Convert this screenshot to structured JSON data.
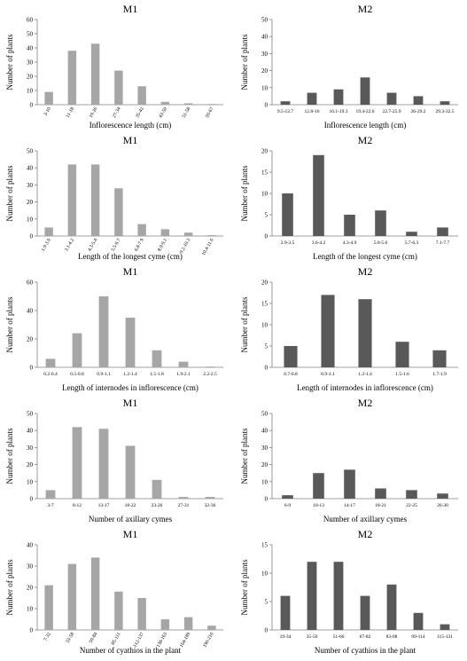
{
  "colors": {
    "M1": "#a6a6a6",
    "M2": "#595959",
    "axis": "#808080"
  },
  "chart_data": [
    {
      "type": "bar",
      "title": "M1",
      "xlabel": "Inflorescence length (cm)",
      "ylabel": "Number of plants",
      "ylim": [
        0,
        60
      ],
      "yticks": [
        "0",
        "10",
        "20",
        "30",
        "40",
        "50",
        "60"
      ],
      "categories": [
        "3-10",
        "11-18",
        "19-26",
        "27-34",
        "35-42",
        "43-50",
        "51-58",
        "59-67"
      ],
      "values": [
        9,
        38,
        43,
        24,
        13,
        2,
        1,
        0.5
      ]
    },
    {
      "type": "bar",
      "title": "M2",
      "xlabel": "Inflorescence length (cm)",
      "ylabel": "Number of plants",
      "ylim": [
        0,
        50
      ],
      "yticks": [
        "0",
        "10",
        "20",
        "30",
        "40",
        "50"
      ],
      "categories": [
        "9.5-12.7",
        "12.8-16",
        "16.1-19.3",
        "19.4-22.6",
        "22.7-25.9",
        "26-29.2",
        "29.3-32.5"
      ],
      "values": [
        2,
        7,
        9,
        16,
        7,
        5,
        2
      ]
    },
    {
      "type": "bar",
      "title": "M1",
      "xlabel": "Length of the longest cyme (cm)",
      "ylabel": "Number of plants",
      "ylim": [
        0,
        50
      ],
      "yticks": [
        "0",
        "10",
        "20",
        "30",
        "40",
        "50"
      ],
      "categories": [
        "1.9-3.0",
        "3.1-4.2",
        "4.3-5.4",
        "5.5-6.7",
        "6.8-7.9",
        "8.0-9.1",
        "9.2-10.3",
        "10.4-11.6"
      ],
      "values": [
        5,
        42,
        42,
        28,
        7,
        4,
        2,
        0.5
      ]
    },
    {
      "type": "bar",
      "title": "M2",
      "xlabel": "Length of the longest cyme (cm)",
      "ylabel": "Number of plants",
      "ylim": [
        0,
        20
      ],
      "yticks": [
        "0",
        "5",
        "10",
        "15",
        "20"
      ],
      "categories": [
        "2.9-3.5",
        "3.6-4.2",
        "4.3-4.9",
        "5.0-5.6",
        "5.7-6.3",
        "7.1-7.7"
      ],
      "values": [
        10,
        19,
        5,
        6,
        1,
        2
      ]
    },
    {
      "type": "bar",
      "title": "M1",
      "xlabel": "Length of internodes in inflorescence (cm)",
      "ylabel": "Number of plants",
      "ylim": [
        0,
        60
      ],
      "yticks": [
        "0",
        "20",
        "40",
        "60"
      ],
      "categories": [
        "0.2-0.4",
        "0.5-0.8",
        "0.9-1.1",
        "1.2-1.4",
        "1.5-1.8",
        "1.9-2.1",
        "2.2-2.5"
      ],
      "values": [
        6,
        24,
        50,
        35,
        12,
        4,
        0.5
      ]
    },
    {
      "type": "bar",
      "title": "M2",
      "xlabel": "Length of internodes in inflorescence (cm)",
      "ylabel": "Number of plants",
      "ylim": [
        0,
        20
      ],
      "yticks": [
        "0",
        "5",
        "10",
        "15",
        "20"
      ],
      "categories": [
        "0.7-0.8",
        "0.9-1.1",
        "1.2-1.4",
        "1.5-1.6",
        "1.7-1.9"
      ],
      "values": [
        5,
        17,
        16,
        6,
        4
      ]
    },
    {
      "type": "bar",
      "title": "M1",
      "xlabel": "Number of axillary cymes",
      "ylabel": "Number of plants",
      "ylim": [
        0,
        50
      ],
      "yticks": [
        "0",
        "10",
        "20",
        "30",
        "40",
        "50"
      ],
      "categories": [
        "3-7",
        "8-12",
        "13-17",
        "18-22",
        "23-26",
        "27-31",
        "32-36"
      ],
      "values": [
        5,
        42,
        41,
        31,
        11,
        1,
        1
      ]
    },
    {
      "type": "bar",
      "title": "M2",
      "xlabel": "Number of axillary cymes",
      "ylabel": "Number of plants",
      "ylim": [
        0,
        50
      ],
      "yticks": [
        "0",
        "10",
        "20",
        "30",
        "40",
        "50"
      ],
      "categories": [
        "6-9",
        "10-13",
        "14-17",
        "18-21",
        "22-25",
        "26-30"
      ],
      "values": [
        2,
        15,
        17,
        6,
        5,
        3
      ]
    },
    {
      "type": "bar",
      "title": "M1",
      "xlabel": "Number of cyathios in the plant",
      "ylabel": "Number of plants",
      "ylim": [
        0,
        40
      ],
      "yticks": [
        "0",
        "10",
        "20",
        "30",
        "40"
      ],
      "categories": [
        "7-32",
        "33-58",
        "59-84",
        "85-111",
        "112-137",
        "138-163",
        "164-189",
        "190-216"
      ],
      "values": [
        21,
        31,
        34,
        18,
        15,
        5,
        6,
        2
      ]
    },
    {
      "type": "bar",
      "title": "M2",
      "xlabel": "Number of cyathios in the plant",
      "ylabel": "Number of plants",
      "ylim": [
        0,
        15
      ],
      "yticks": [
        "0",
        "5",
        "10",
        "15"
      ],
      "categories": [
        "19-34",
        "35-50",
        "51-66",
        "67-82",
        "83-98",
        "99-114",
        "115-131"
      ],
      "values": [
        6,
        12,
        12,
        6,
        8,
        3,
        1
      ]
    }
  ]
}
